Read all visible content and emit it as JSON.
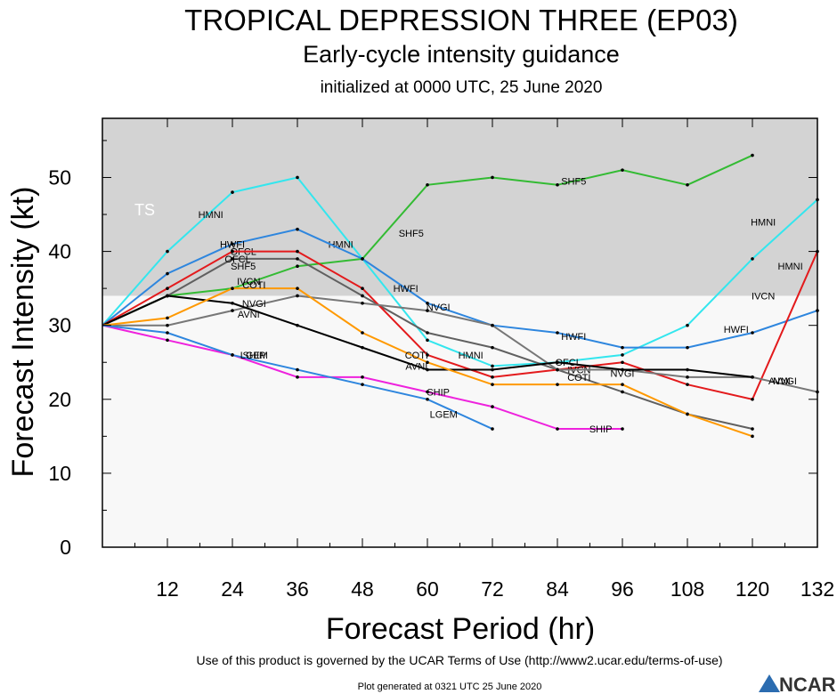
{
  "chart_data": {
    "type": "line",
    "title": "TROPICAL DEPRESSION THREE (EP03)",
    "subtitle": "Early-cycle intensity guidance",
    "initialized": "initialized at 0000 UTC, 25 June 2020",
    "xlabel": "Forecast Period (hr)",
    "ylabel": "Forecast Intensity (kt)",
    "xlim": [
      0,
      132
    ],
    "ylim": [
      0,
      58
    ],
    "xticks": [
      12,
      24,
      36,
      48,
      60,
      72,
      84,
      96,
      108,
      120,
      132
    ],
    "yticks": [
      0,
      10,
      20,
      30,
      40,
      50
    ],
    "ts_threshold": 34,
    "ts_label": "TS",
    "colors": {
      "ts_band": "#d3d3d3",
      "below_band": "#f8f8f8"
    },
    "series": [
      {
        "name": "HMNI",
        "color": "#33e6ee",
        "x": [
          0,
          12,
          24,
          36,
          48,
          60,
          72,
          84,
          96,
          108,
          120,
          132
        ],
        "y": [
          30,
          40,
          48,
          50,
          39,
          28,
          24.5,
          25,
          26,
          30,
          39,
          47
        ],
        "labels": [
          [
            20,
            45
          ],
          [
            44,
            41
          ],
          [
            68,
            26
          ],
          [
            127,
            38
          ],
          [
            122,
            44
          ]
        ]
      },
      {
        "name": "SHF5",
        "color": "#33bb33",
        "x": [
          0,
          12,
          24,
          36,
          48,
          60,
          72,
          84,
          96,
          108,
          120
        ],
        "y": [
          30,
          34,
          35,
          38,
          39,
          49,
          50,
          49,
          51,
          49,
          53
        ],
        "labels": [
          [
            26,
            38
          ],
          [
            57,
            42.5
          ],
          [
            87,
            49.5
          ]
        ]
      },
      {
        "name": "HWFI",
        "color": "#2e86de",
        "x": [
          0,
          12,
          24,
          36,
          48,
          60,
          72,
          84,
          96,
          108,
          120,
          132
        ],
        "y": [
          30,
          37,
          41,
          43,
          39,
          33,
          30,
          29,
          27,
          27,
          29,
          32
        ],
        "labels": [
          [
            24,
            41
          ],
          [
            56,
            35
          ],
          [
            87,
            28.5
          ],
          [
            117,
            29.5
          ]
        ]
      },
      {
        "name": "OFCL",
        "color": "#606060",
        "x": [
          0,
          12,
          24,
          36,
          48,
          60,
          72,
          84,
          96,
          108,
          120
        ],
        "y": [
          30,
          34,
          39,
          39,
          34,
          29,
          27,
          24,
          21,
          18,
          16
        ],
        "labels": [
          [
            25,
            39
          ],
          [
            26,
            40
          ],
          [
            86,
            25
          ]
        ]
      },
      {
        "name": "IVCN",
        "color": "#e31a1c",
        "x": [
          0,
          12,
          24,
          36,
          48,
          60,
          72,
          84,
          96,
          108,
          120,
          132
        ],
        "y": [
          30,
          35,
          40,
          40,
          35,
          26,
          23,
          24,
          25,
          22,
          20,
          40
        ],
        "labels": [
          [
            27,
            36
          ],
          [
            88,
            24
          ],
          [
            122,
            34
          ]
        ]
      },
      {
        "name": "NVGI",
        "color": "#777777",
        "x": [
          0,
          12,
          24,
          36,
          48,
          60,
          72,
          84,
          96,
          108,
          120,
          132
        ],
        "y": [
          30,
          30,
          32,
          34,
          33,
          32,
          30,
          24,
          24,
          23,
          23,
          21
        ],
        "labels": [
          [
            28,
            33
          ],
          [
            62,
            32.5
          ],
          [
            96,
            23.5
          ],
          [
            126,
            22.5
          ]
        ]
      },
      {
        "name": "AVNI",
        "color": "#000000",
        "x": [
          0,
          12,
          24,
          36,
          48,
          60,
          72,
          84,
          96,
          108,
          120
        ],
        "y": [
          30,
          34,
          33,
          30,
          27,
          24,
          24,
          25,
          24,
          24,
          23
        ],
        "labels": [
          [
            27,
            31.5
          ],
          [
            58,
            24.5
          ],
          [
            125,
            22.5
          ]
        ]
      },
      {
        "name": "COTI",
        "color": "#ff9900",
        "x": [
          0,
          12,
          24,
          36,
          48,
          60,
          72,
          84,
          96,
          108,
          120
        ],
        "y": [
          30,
          31,
          35,
          35,
          29,
          25,
          22,
          22,
          22,
          18,
          15
        ],
        "labels": [
          [
            28,
            35.5
          ],
          [
            58,
            26
          ],
          [
            88,
            23
          ]
        ]
      },
      {
        "name": "SHIP",
        "color": "#ee22dd",
        "x": [
          0,
          12,
          24,
          36,
          48,
          60,
          72,
          84,
          96
        ],
        "y": [
          30,
          28,
          26,
          23,
          23,
          21,
          19,
          16,
          16
        ],
        "labels": [
          [
            28,
            26
          ],
          [
            62,
            21
          ],
          [
            92,
            16
          ]
        ]
      },
      {
        "name": "LGEM",
        "color": "#2e86de",
        "x": [
          0,
          12,
          24,
          36,
          48,
          60,
          72
        ],
        "y": [
          30,
          29,
          26,
          24,
          22,
          20,
          16
        ],
        "labels": [
          [
            28,
            26
          ],
          [
            63,
            18
          ]
        ]
      }
    ]
  },
  "footer": {
    "terms": "Use of this product is governed by the UCAR Terms of Use (http://www2.ucar.edu/terms-of-use)",
    "generated": "Plot generated at 0321 UTC   25 June 2020",
    "logo": "NCAR"
  }
}
